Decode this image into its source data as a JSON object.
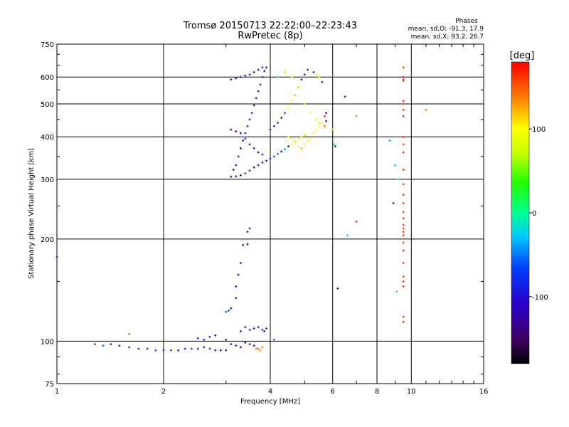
{
  "chart_data": {
    "type": "scatter",
    "title": "Tromsø 20150713 22:22:00–22:23:43",
    "subtitle": "RwPretec (8p)",
    "xlabel": "Frequency [MHz]",
    "ylabel": "Stationary phase Virtual Height [km]",
    "x_scale": "log",
    "y_scale": "log",
    "xlim": [
      1,
      16
    ],
    "ylim": [
      75,
      750
    ],
    "x_ticks": [
      1,
      2,
      4,
      6,
      8,
      10,
      16
    ],
    "y_ticks": [
      75,
      100,
      200,
      300,
      400,
      500,
      600,
      750
    ],
    "grid": true,
    "stats": {
      "heading": "Phases",
      "line_o": "mean, sd,O: -91.3, 17.9",
      "line_x": "mean, sd,X:  93.2, 26.7"
    },
    "colorbar": {
      "label": "[deg]",
      "min": -180,
      "max": 180,
      "ticks": [
        -100,
        0,
        100
      ]
    },
    "series": [
      {
        "points": [
          [
            1.0,
            177,
            -110
          ],
          [
            1.28,
            98,
            -70
          ],
          [
            1.35,
            97,
            -60
          ],
          [
            1.42,
            98,
            -100
          ],
          [
            1.5,
            97,
            -95
          ],
          [
            1.6,
            96,
            -100
          ],
          [
            1.7,
            95,
            -90
          ],
          [
            1.8,
            95,
            -85
          ],
          [
            1.9,
            94,
            -70
          ],
          [
            2.0,
            94,
            -90
          ],
          [
            2.1,
            94,
            -80
          ],
          [
            2.2,
            94,
            -100
          ],
          [
            2.3,
            95,
            -110
          ],
          [
            2.4,
            95,
            -70
          ],
          [
            2.5,
            95,
            -90
          ],
          [
            2.6,
            96,
            -100
          ],
          [
            2.7,
            95,
            -80
          ],
          [
            2.8,
            94,
            -110
          ],
          [
            2.9,
            94,
            -100
          ],
          [
            3.0,
            94,
            -130
          ],
          [
            2.5,
            102,
            -90
          ],
          [
            2.6,
            101,
            -80
          ],
          [
            2.7,
            103,
            -100
          ],
          [
            2.8,
            104,
            -110
          ],
          [
            3.0,
            101,
            -140
          ],
          [
            3.1,
            98,
            -130
          ],
          [
            3.2,
            97,
            -150
          ],
          [
            3.3,
            96,
            -120
          ],
          [
            3.4,
            99,
            -110
          ],
          [
            3.5,
            98,
            -130
          ],
          [
            3.6,
            97,
            -100
          ],
          [
            3.65,
            95,
            140
          ],
          [
            3.7,
            95,
            150
          ],
          [
            3.75,
            94,
            130
          ],
          [
            3.8,
            96,
            140
          ],
          [
            3.3,
            107,
            -100
          ],
          [
            3.4,
            110,
            -110
          ],
          [
            3.5,
            108,
            -90
          ],
          [
            3.6,
            109,
            -100
          ],
          [
            3.7,
            110,
            -95
          ],
          [
            3.8,
            108,
            -80
          ],
          [
            3.85,
            107,
            -100
          ],
          [
            3.9,
            109,
            -70
          ],
          [
            4.1,
            101,
            -60
          ],
          [
            3.0,
            122,
            -60
          ],
          [
            3.05,
            123,
            -70
          ],
          [
            3.1,
            125,
            -100
          ],
          [
            3.2,
            134,
            -110
          ],
          [
            3.2,
            145,
            -100
          ],
          [
            3.25,
            157,
            -110
          ],
          [
            3.3,
            170,
            -90
          ],
          [
            3.35,
            192,
            -120
          ],
          [
            3.45,
            193,
            -130
          ],
          [
            3.5,
            215,
            -100
          ],
          [
            3.45,
            210,
            -110
          ],
          [
            1.6,
            105,
            150
          ],
          [
            3.1,
            305,
            -120
          ],
          [
            3.2,
            306,
            -110
          ],
          [
            3.3,
            308,
            -130
          ],
          [
            3.4,
            312,
            -100
          ],
          [
            3.5,
            318,
            -120
          ],
          [
            3.6,
            325,
            -110
          ],
          [
            3.7,
            330,
            -100
          ],
          [
            3.8,
            336,
            -90
          ],
          [
            3.9,
            340,
            -100
          ],
          [
            4.0,
            345,
            -110
          ],
          [
            4.1,
            350,
            -80
          ],
          [
            4.2,
            356,
            -60
          ],
          [
            4.3,
            362,
            -110
          ],
          [
            4.4,
            368,
            -40
          ],
          [
            4.5,
            375,
            -120
          ],
          [
            4.6,
            380,
            100
          ],
          [
            4.7,
            388,
            110
          ],
          [
            4.8,
            395,
            90
          ],
          [
            4.9,
            400,
            100
          ],
          [
            5.0,
            405,
            120
          ],
          [
            3.15,
            320,
            -120
          ],
          [
            3.2,
            330,
            -100
          ],
          [
            3.25,
            350,
            -110
          ],
          [
            3.3,
            370,
            -120
          ],
          [
            3.35,
            390,
            -100
          ],
          [
            3.4,
            410,
            -110
          ],
          [
            3.45,
            430,
            -90
          ],
          [
            3.5,
            450,
            -120
          ],
          [
            3.55,
            470,
            -100
          ],
          [
            3.6,
            495,
            -110
          ],
          [
            3.65,
            520,
            -120
          ],
          [
            3.7,
            545,
            -100
          ],
          [
            3.75,
            570,
            -130
          ],
          [
            3.8,
            600,
            -110
          ],
          [
            3.85,
            625,
            -120
          ],
          [
            3.9,
            640,
            -100
          ],
          [
            3.1,
            420,
            -120
          ],
          [
            3.2,
            415,
            -110
          ],
          [
            3.3,
            410,
            -100
          ],
          [
            3.4,
            395,
            -90
          ],
          [
            3.5,
            380,
            -110
          ],
          [
            3.6,
            370,
            -100
          ],
          [
            3.7,
            360,
            -120
          ],
          [
            3.8,
            355,
            -100
          ],
          [
            3.1,
            590,
            -110
          ],
          [
            3.2,
            595,
            -120
          ],
          [
            3.3,
            600,
            -100
          ],
          [
            3.4,
            605,
            -110
          ],
          [
            3.5,
            610,
            -90
          ],
          [
            3.6,
            620,
            -100
          ],
          [
            3.7,
            630,
            -110
          ],
          [
            3.8,
            640,
            -120
          ],
          [
            4.0,
            420,
            -100
          ],
          [
            4.1,
            430,
            -110
          ],
          [
            4.2,
            440,
            -90
          ],
          [
            4.3,
            455,
            -100
          ],
          [
            4.4,
            470,
            -60
          ],
          [
            4.5,
            490,
            90
          ],
          [
            4.6,
            510,
            100
          ],
          [
            4.7,
            530,
            120
          ],
          [
            4.8,
            560,
            60
          ],
          [
            4.9,
            590,
            -100
          ],
          [
            5.0,
            610,
            -110
          ],
          [
            5.1,
            630,
            -90
          ],
          [
            4.2,
            600,
            20
          ],
          [
            4.4,
            620,
            60
          ],
          [
            4.6,
            600,
            100
          ],
          [
            4.8,
            560,
            110
          ],
          [
            5.0,
            500,
            120
          ],
          [
            5.2,
            470,
            100
          ],
          [
            5.4,
            450,
            90
          ],
          [
            5.5,
            440,
            110
          ],
          [
            5.3,
            620,
            -90
          ],
          [
            5.4,
            610,
            80
          ],
          [
            5.5,
            600,
            110
          ],
          [
            5.6,
            580,
            -100
          ],
          [
            5.7,
            460,
            170
          ],
          [
            5.75,
            470,
            -100
          ],
          [
            5.7,
            430,
            150
          ],
          [
            5.75,
            445,
            -110
          ],
          [
            4.5,
            400,
            100
          ],
          [
            4.6,
            395,
            110
          ],
          [
            4.7,
            385,
            105
          ],
          [
            4.8,
            375,
            100
          ],
          [
            4.9,
            370,
            120
          ],
          [
            5.0,
            380,
            95
          ],
          [
            5.1,
            390,
            100
          ],
          [
            5.2,
            395,
            90
          ],
          [
            5.3,
            410,
            110
          ],
          [
            5.4,
            420,
            100
          ],
          [
            5.5,
            430,
            95
          ],
          [
            5.6,
            440,
            90
          ],
          [
            6.0,
            420,
            60
          ],
          [
            6.05,
            380,
            20
          ],
          [
            6.1,
            375,
            -100
          ],
          [
            6.5,
            525,
            -110
          ],
          [
            7.0,
            460,
            140
          ],
          [
            6.2,
            143,
            -130
          ],
          [
            6.6,
            205,
            -20
          ],
          [
            7.0,
            225,
            170
          ],
          [
            8.7,
            390,
            -40
          ],
          [
            8.9,
            255,
            -120
          ],
          [
            9.0,
            330,
            -20
          ],
          [
            9.1,
            140,
            -20
          ],
          [
            9.2,
            300,
            -20
          ],
          [
            11.0,
            480,
            140
          ],
          [
            9.5,
            640,
            160
          ],
          [
            9.5,
            600,
            170
          ],
          [
            9.5,
            590,
            160
          ],
          [
            9.5,
            585,
            165
          ],
          [
            9.5,
            510,
            170
          ],
          [
            9.5,
            500,
            165
          ],
          [
            9.5,
            480,
            160
          ],
          [
            9.5,
            460,
            170
          ],
          [
            9.5,
            400,
            165
          ],
          [
            9.5,
            380,
            160
          ],
          [
            9.5,
            360,
            170
          ],
          [
            9.5,
            320,
            165
          ],
          [
            9.5,
            290,
            160
          ],
          [
            9.5,
            270,
            170
          ],
          [
            9.5,
            255,
            165
          ],
          [
            9.5,
            240,
            160
          ],
          [
            9.5,
            230,
            170
          ],
          [
            9.5,
            220,
            165
          ],
          [
            9.5,
            215,
            160
          ],
          [
            9.5,
            210,
            170
          ],
          [
            9.5,
            205,
            165
          ],
          [
            9.5,
            195,
            160
          ],
          [
            9.5,
            185,
            170
          ],
          [
            9.5,
            170,
            165
          ],
          [
            9.5,
            155,
            160
          ],
          [
            9.5,
            150,
            170
          ],
          [
            9.5,
            145,
            165
          ],
          [
            9.5,
            118,
            160
          ],
          [
            9.5,
            114,
            170
          ]
        ]
      }
    ]
  }
}
